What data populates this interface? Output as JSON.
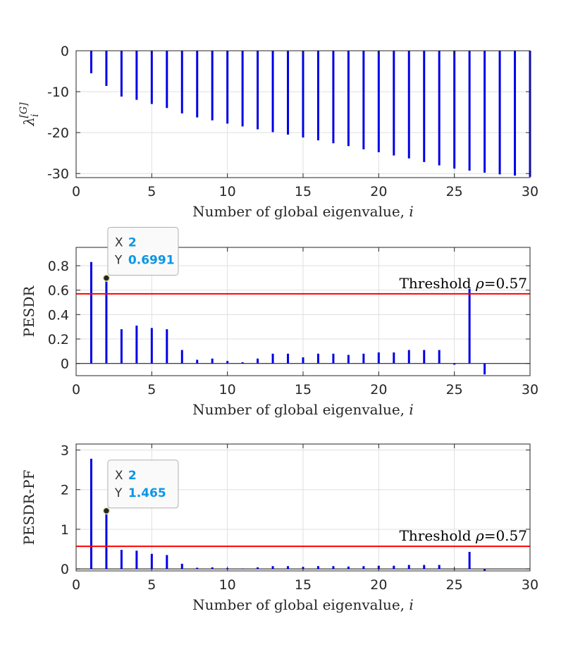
{
  "chart_data": [
    {
      "type": "stem",
      "title": "",
      "xlabel": "Number of global eigenvalue, i",
      "xlabel_text": "Number of global eigenvalue, ",
      "xlabel_var": "i",
      "ylabel": "λ_i^[G]",
      "ylabel_main": "λ",
      "ylabel_sub": "i",
      "ylabel_sup": "[G]",
      "xlim": [
        0,
        30
      ],
      "ylim": [
        -31,
        0
      ],
      "xticks": [
        0,
        5,
        10,
        15,
        20,
        25,
        30
      ],
      "yticks": [
        0,
        -10,
        -20,
        -30
      ],
      "grid": true,
      "color": "#0000e6",
      "x": [
        1,
        2,
        3,
        4,
        5,
        6,
        7,
        8,
        9,
        10,
        11,
        12,
        13,
        14,
        15,
        16,
        17,
        18,
        19,
        20,
        21,
        22,
        23,
        24,
        25,
        26,
        27,
        28,
        29,
        30
      ],
      "values": [
        -5.5,
        -8.6,
        -11.2,
        -12.0,
        -13.0,
        -14.0,
        -15.3,
        -16.3,
        -17.0,
        -17.8,
        -18.5,
        -19.2,
        -19.9,
        -20.5,
        -21.2,
        -21.9,
        -22.6,
        -23.3,
        -24.1,
        -24.8,
        -25.6,
        -26.3,
        -27.2,
        -28.0,
        -28.8,
        -29.3,
        -29.8,
        -30.2,
        -30.5,
        -30.8
      ]
    },
    {
      "type": "stem",
      "title": "",
      "xlabel": "Number of global eigenvalue, i",
      "xlabel_text": "Number of global eigenvalue, ",
      "xlabel_var": "i",
      "ylabel": "PESDR",
      "xlim": [
        0,
        30
      ],
      "ylim": [
        -0.1,
        0.95
      ],
      "xticks": [
        0,
        5,
        10,
        15,
        20,
        25,
        30
      ],
      "yticks": [
        0,
        0.2,
        0.4,
        0.6,
        0.8
      ],
      "grid": true,
      "color": "#0000e6",
      "x": [
        1,
        2,
        3,
        4,
        5,
        6,
        7,
        8,
        9,
        10,
        11,
        12,
        13,
        14,
        15,
        16,
        17,
        18,
        19,
        20,
        21,
        22,
        23,
        24,
        25,
        26,
        27
      ],
      "values": [
        0.83,
        0.6991,
        0.28,
        0.31,
        0.29,
        0.28,
        0.11,
        0.03,
        0.04,
        0.02,
        0.01,
        0.04,
        0.08,
        0.08,
        0.05,
        0.08,
        0.08,
        0.07,
        0.08,
        0.09,
        0.09,
        0.11,
        0.11,
        0.11,
        -0.01,
        0.61,
        -0.09
      ],
      "threshold": {
        "value": 0.57,
        "label_text": "Threshold ",
        "label_var": "ρ",
        "label_val": "=0.57",
        "color": "#ff0000"
      },
      "datatip": {
        "x_label": "X",
        "x_value": "2",
        "y_label": "Y",
        "y_value": "0.6991",
        "point_x": 2,
        "point_y": 0.6991
      }
    },
    {
      "type": "stem",
      "title": "",
      "xlabel": "Number of global eigenvalue, i",
      "xlabel_text": "Number of global eigenvalue, ",
      "xlabel_var": "i",
      "ylabel": "PESDR-PF",
      "xlim": [
        0,
        30
      ],
      "ylim": [
        -0.05,
        3.15
      ],
      "xticks": [
        0,
        5,
        10,
        15,
        20,
        25,
        30
      ],
      "yticks": [
        0,
        1,
        2,
        3
      ],
      "grid": true,
      "color": "#0000e6",
      "x": [
        1,
        2,
        3,
        4,
        5,
        6,
        7,
        8,
        9,
        10,
        11,
        12,
        13,
        14,
        15,
        16,
        17,
        18,
        19,
        20,
        21,
        22,
        23,
        24,
        25,
        26,
        27
      ],
      "values": [
        2.78,
        1.465,
        0.48,
        0.46,
        0.38,
        0.35,
        0.13,
        0.03,
        0.04,
        0.02,
        0.01,
        0.04,
        0.07,
        0.07,
        0.05,
        0.07,
        0.07,
        0.06,
        0.07,
        0.08,
        0.08,
        0.1,
        0.1,
        0.1,
        -0.01,
        0.43,
        -0.05
      ],
      "threshold": {
        "value": 0.57,
        "label_text": "Threshold ",
        "label_var": "ρ",
        "label_val": "=0.57",
        "color": "#ff0000"
      },
      "datatip": {
        "x_label": "X",
        "x_value": "2",
        "y_label": "Y",
        "y_value": "1.465",
        "point_x": 2,
        "point_y": 1.465
      }
    }
  ]
}
